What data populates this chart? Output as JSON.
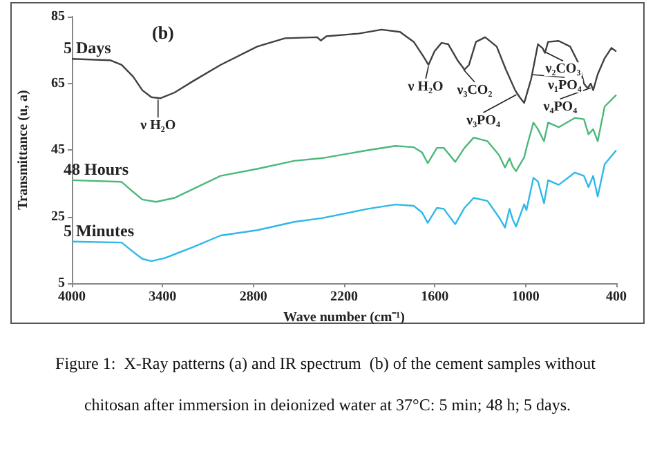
{
  "chart_data": {
    "type": "line",
    "title": "(b)",
    "xlabel": "Wave number (cm⁻¹)",
    "ylabel": "Transmittance (u, a)",
    "xlim": [
      4000,
      400
    ],
    "xticks": [
      4000,
      3400,
      2800,
      2200,
      1600,
      1000,
      400
    ],
    "ylim": [
      5,
      85
    ],
    "yticks": [
      5,
      25,
      45,
      65,
      85
    ],
    "grid": false,
    "legend": false,
    "marker": "none",
    "line_style": "solid",
    "series": [
      {
        "name": "5 Days",
        "color": "#404040",
        "x": [
          4000,
          3747,
          3671,
          3595,
          3534,
          3474,
          3413,
          3321,
          3200,
          3017,
          2774,
          2591,
          2378,
          2354,
          2317,
          2104,
          1952,
          1830,
          1739,
          1678,
          1642,
          1602,
          1556,
          1511,
          1450,
          1404,
          1374,
          1328,
          1267,
          1191,
          1130,
          1069,
          1039,
          1009,
          963,
          918,
          887,
          872,
          851,
          781,
          705,
          644,
          614,
          590,
          569,
          553,
          523,
          477,
          432,
          400
        ],
        "values": [
          72.3,
          71.9,
          70.5,
          67,
          62.9,
          60.8,
          60.5,
          62.2,
          65.6,
          70.5,
          76,
          78.5,
          78.8,
          77.8,
          79.1,
          79.9,
          81.1,
          80.4,
          77.4,
          73.2,
          70.5,
          74.6,
          77.1,
          76.7,
          71.9,
          69.1,
          70.5,
          77.4,
          78.8,
          76,
          69.1,
          62.9,
          60.8,
          59.1,
          66.3,
          76.7,
          75.5,
          74.1,
          77.4,
          77.7,
          76,
          70.5,
          64.9,
          63.5,
          64.9,
          62.9,
          67.7,
          72.5,
          75.6,
          74.5
        ]
      },
      {
        "name": "48 Hours",
        "color": "#4cb87a",
        "x": [
          4000,
          3671,
          3595,
          3534,
          3443,
          3321,
          3017,
          2774,
          2530,
          2348,
          2043,
          1861,
          1739,
          1684,
          1647,
          1586,
          1541,
          1465,
          1404,
          1343,
          1252,
          1176,
          1136,
          1106,
          1085,
          1063,
          1009,
          994,
          948,
          918,
          878,
          851,
          781,
          674,
          614,
          584,
          553,
          523,
          477,
          400
        ],
        "values": [
          35.9,
          35.4,
          32.4,
          30.1,
          29.4,
          30.6,
          37.2,
          39.3,
          41.7,
          42.5,
          44.9,
          46.2,
          45.8,
          44.2,
          41,
          45.6,
          45.6,
          41.4,
          45.6,
          48.7,
          47.6,
          43.5,
          39.7,
          42.5,
          40,
          38.6,
          42.8,
          45.6,
          53.2,
          51.2,
          47.6,
          53.2,
          51.8,
          54.6,
          54.2,
          49.7,
          51.2,
          47.6,
          58,
          61.5
        ]
      },
      {
        "name": "5 Minutes",
        "color": "#2eb8e8",
        "x": [
          4000,
          3671,
          3595,
          3534,
          3474,
          3382,
          3200,
          3017,
          2774,
          2530,
          2348,
          2043,
          1861,
          1739,
          1684,
          1647,
          1586,
          1541,
          1465,
          1404,
          1343,
          1252,
          1176,
          1136,
          1106,
          1085,
          1063,
          1009,
          994,
          948,
          918,
          878,
          851,
          781,
          674,
          614,
          584,
          553,
          523,
          477,
          400
        ],
        "values": [
          17.5,
          17.2,
          14.4,
          12.3,
          11.6,
          12.6,
          15.8,
          19.3,
          20.9,
          23.4,
          24.5,
          27.3,
          28.6,
          28.2,
          26.2,
          23.1,
          27.6,
          27.3,
          22.7,
          27.6,
          30.6,
          29.7,
          24.8,
          21.7,
          27.3,
          24.1,
          22,
          28.7,
          26.9,
          36.6,
          35.5,
          29,
          35.9,
          34.5,
          38.2,
          37.2,
          33.8,
          37.2,
          31,
          40.7,
          44.9
        ]
      }
    ],
    "annotations": [
      {
        "text": "ν H₂O",
        "x": 3430,
        "y": 60.5
      },
      {
        "text": "ν H₂O",
        "x": 1642,
        "y": 70.5
      },
      {
        "text": "ν₃CO₂",
        "x": 1410,
        "y": 69.5
      },
      {
        "text": "ν₃PO₄",
        "x": 1060,
        "y": 62
      },
      {
        "text": "ν₂CO₃",
        "x": 880,
        "y": 75
      },
      {
        "text": "ν₁PO₄",
        "x": 960,
        "y": 68
      },
      {
        "text": "ν₄PO₄",
        "x": 570,
        "y": 64
      },
      "Figure 1:  X-Ray patterns (a) and IR spectrum  (b) of the cement samples without chitosan after immersion in deionized water at 37°C: 5 min; 48 h; 5 days."
    ]
  }
}
